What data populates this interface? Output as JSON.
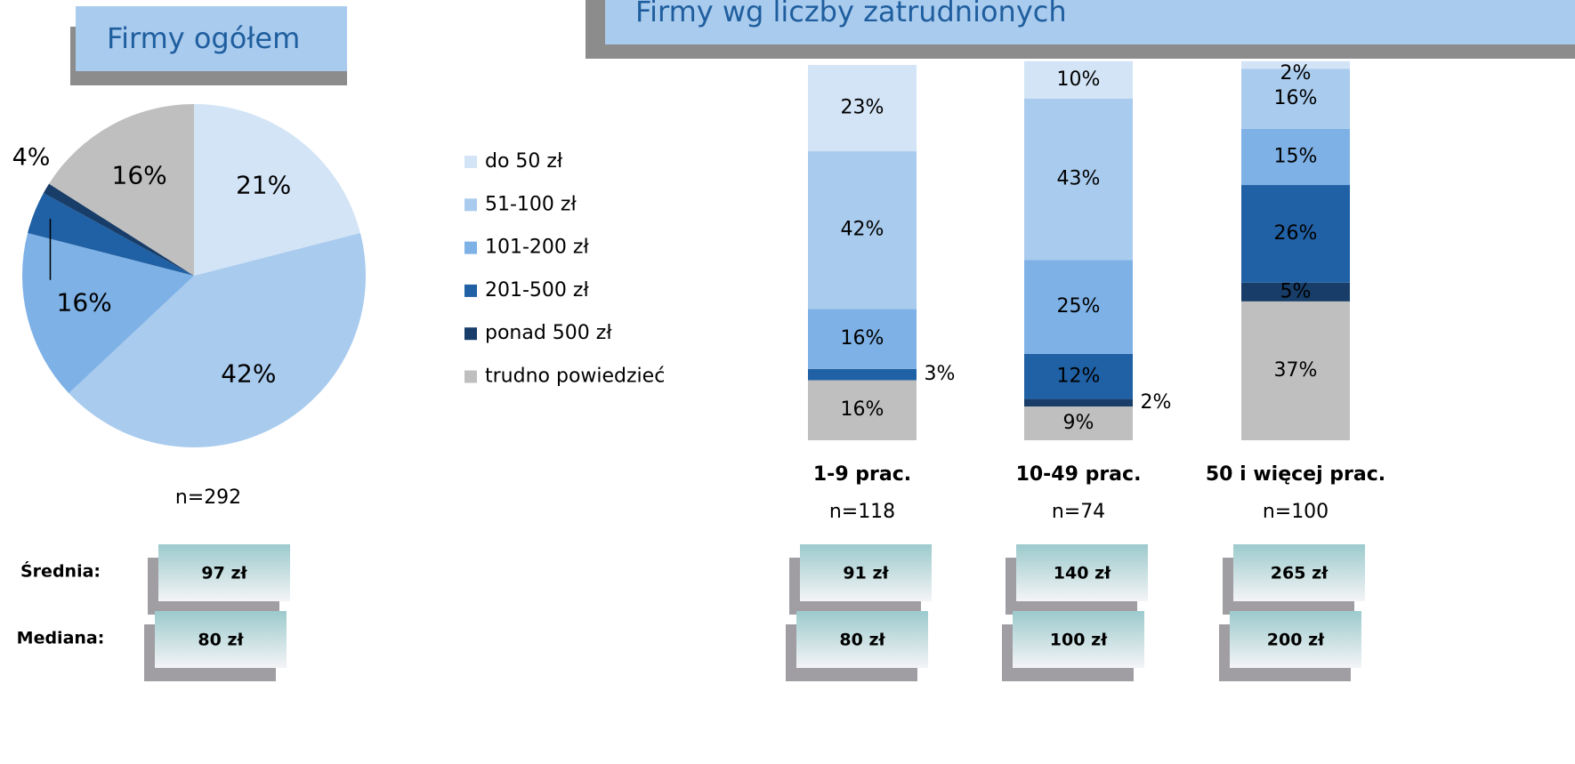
{
  "chart_data": [
    {
      "type": "pie",
      "title": "Firmy ogółem",
      "values": [
        21,
        42,
        16,
        4,
        1,
        16
      ],
      "value_labels": [
        "21%",
        "42%",
        "16%",
        "4%",
        null,
        "16%"
      ],
      "colors": [
        "#d3e4f6",
        "#a9cbee",
        "#7eb1e6",
        "#2060a4",
        "#173d68",
        "#bfbfbf"
      ],
      "n": "n=292",
      "mean_label": "Średnia:",
      "median_label": "Mediana:",
      "mean": "97 zł",
      "median": "80 zł"
    },
    {
      "type": "stacked_bar",
      "title": "Firmy wg liczby zatrudnionych",
      "categories": [
        "1-9 prac.",
        "10-49 prac.",
        "50 i więcej prac."
      ],
      "series": [
        {
          "name": "do 50 zł",
          "color": "#d3e4f6",
          "values": [
            23,
            10,
            2
          ],
          "value_labels": [
            "23%",
            "10%",
            "2%"
          ]
        },
        {
          "name": "51-100 zł",
          "color": "#a9cbee",
          "values": [
            42,
            43,
            16
          ],
          "value_labels": [
            "42%",
            "43%",
            "16%"
          ]
        },
        {
          "name": "101-200 zł",
          "color": "#7eb1e6",
          "values": [
            16,
            25,
            15
          ],
          "value_labels": [
            "16%",
            "25%",
            "15%"
          ]
        },
        {
          "name": "201-500 zł",
          "color": "#2060a4",
          "values": [
            3,
            12,
            26
          ],
          "value_labels": [
            "3%",
            "12%",
            "26%"
          ]
        },
        {
          "name": "ponad 500 zł",
          "color": "#173d68",
          "values": [
            0,
            2,
            5
          ],
          "value_labels": [
            null,
            "2%",
            "5%"
          ]
        },
        {
          "name": "trudno powiedzieć",
          "color": "#bfbfbf",
          "values": [
            16,
            9,
            37
          ],
          "value_labels": [
            "16%",
            "9%",
            "37%"
          ]
        }
      ],
      "ylim": [
        0,
        100
      ],
      "n": [
        "n=118",
        "n=74",
        "n=100"
      ],
      "means": [
        "91 zł",
        "140 zł",
        "265 zł"
      ],
      "medians": [
        "80 zł",
        "100 zł",
        "200 zł"
      ]
    }
  ]
}
